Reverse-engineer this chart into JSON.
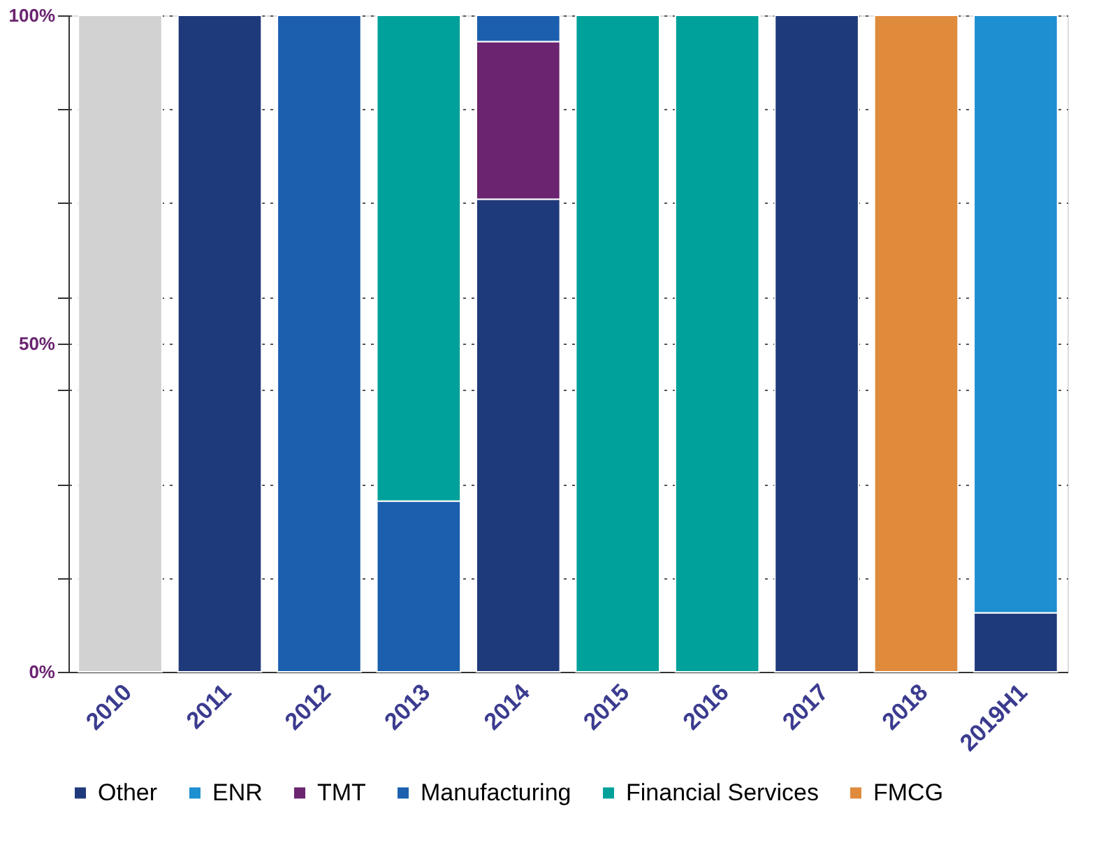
{
  "chart_data": {
    "type": "bar",
    "stacked": true,
    "categories": [
      "2010",
      "2011",
      "2012",
      "2013",
      "2014",
      "2015",
      "2016",
      "2017",
      "2018",
      "2019H1"
    ],
    "series": [
      {
        "name": "Other",
        "color": "#1f3a7a",
        "values": [
          null,
          100,
          null,
          null,
          72,
          null,
          null,
          100,
          null,
          9
        ]
      },
      {
        "name": "ENR",
        "color": "#1e8fd0",
        "values": [
          null,
          null,
          null,
          null,
          null,
          null,
          null,
          null,
          null,
          91
        ]
      },
      {
        "name": "TMT",
        "color": "#6a2470",
        "values": [
          null,
          null,
          null,
          null,
          24,
          null,
          null,
          null,
          null,
          null
        ]
      },
      {
        "name": "Manufacturing",
        "color": "#1b5fae",
        "values": [
          null,
          null,
          100,
          26,
          4,
          null,
          null,
          null,
          null,
          null
        ]
      },
      {
        "name": "Financial Services",
        "color": "#00a19a",
        "values": [
          null,
          null,
          null,
          74,
          null,
          100,
          100,
          null,
          null,
          null
        ]
      },
      {
        "name": "FMCG",
        "color": "#e08a3c",
        "values": [
          null,
          null,
          null,
          null,
          null,
          null,
          null,
          null,
          100,
          null
        ]
      },
      {
        "color": "#d3d2d2",
        "values": [
          100,
          null,
          null,
          null,
          null,
          null,
          null,
          null,
          null,
          null
        ]
      }
    ],
    "ylim": [
      0,
      100
    ],
    "yticks": [
      {
        "value": 0,
        "label": "0%"
      },
      {
        "value": 14.3,
        "label": null
      },
      {
        "value": 28.6,
        "label": null
      },
      {
        "value": 42.9,
        "label": null
      },
      {
        "value": 50,
        "label": "50%"
      },
      {
        "value": 57.1,
        "label": null
      },
      {
        "value": 71.4,
        "label": null
      },
      {
        "value": 85.7,
        "label": null
      },
      {
        "value": 100,
        "label": "100%"
      }
    ],
    "grid": "y",
    "legend": "bottom"
  }
}
